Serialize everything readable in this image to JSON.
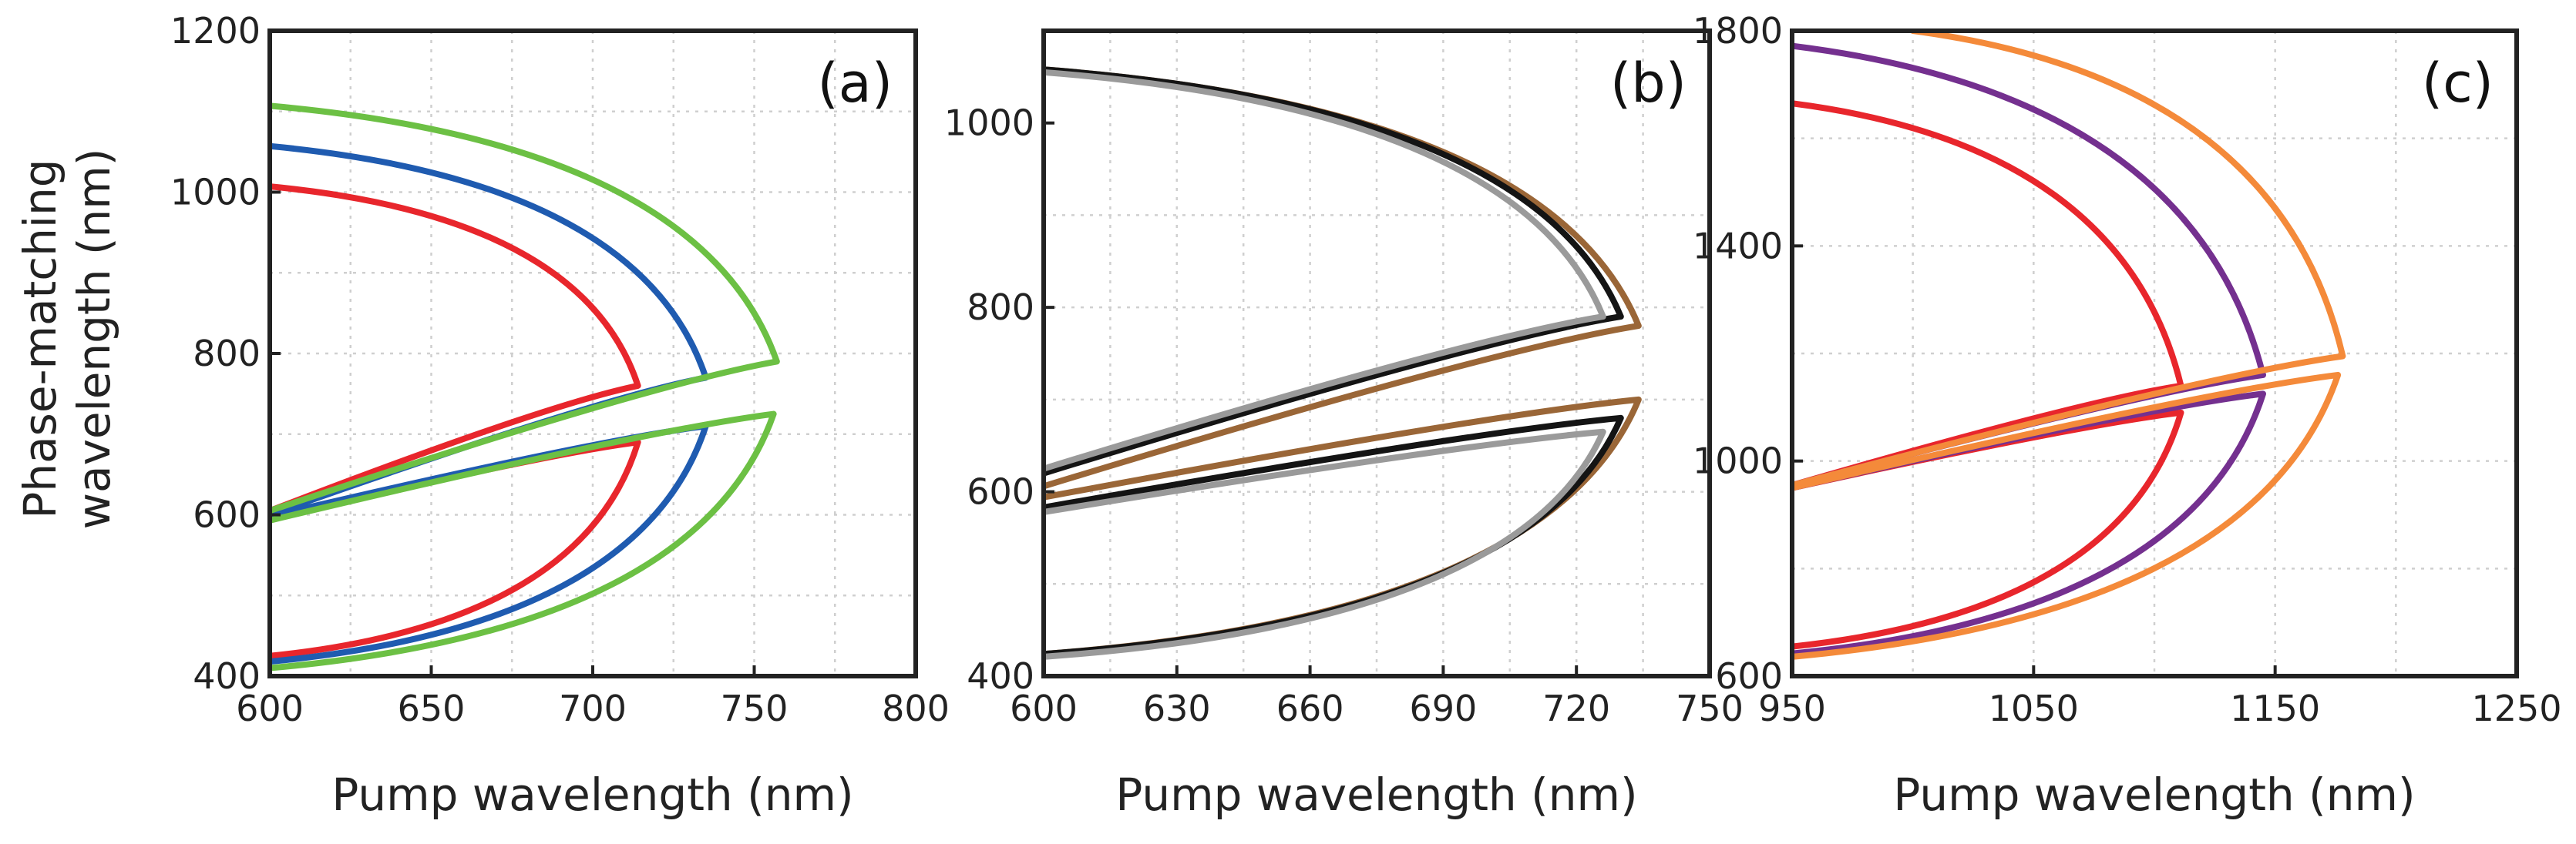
{
  "figure": {
    "shared_ylabel_line1": "Phase-matching",
    "shared_ylabel_line2": "wavelength (nm)"
  },
  "colors": {
    "red": "#e8262c",
    "blue": "#1f5bb0",
    "green": "#6cc044",
    "black": "#141414",
    "gray": "#9a9a9a",
    "brown": "#9a6637",
    "purple": "#74308f",
    "orange": "#f48a3a"
  },
  "chart_data": [
    {
      "type": "line",
      "panel_label": "(a)",
      "title": "",
      "xlabel": "Pump wavelength (nm)",
      "ylabel": "Phase-matching wavelength (nm)",
      "xlim": [
        600,
        800
      ],
      "ylim": [
        400,
        1200
      ],
      "xticks": [
        600,
        650,
        700,
        750,
        800
      ],
      "yticks": [
        400,
        600,
        800,
        1000,
        1200
      ],
      "grid": true,
      "series": [
        {
          "name": "red-upper",
          "color": "red",
          "turning_x": 714,
          "turning_y": 760,
          "start": [
            600,
            605
          ],
          "end": [
            600,
            1007
          ]
        },
        {
          "name": "red-lower",
          "color": "red",
          "turning_x": 714,
          "turning_y": 690,
          "start": [
            600,
            595
          ],
          "end": [
            600,
            425
          ]
        },
        {
          "name": "blue-upper",
          "color": "blue",
          "turning_x": 735,
          "turning_y": 770,
          "start": [
            600,
            600
          ],
          "end": [
            600,
            1057
          ]
        },
        {
          "name": "blue-lower",
          "color": "blue",
          "turning_x": 735,
          "turning_y": 710,
          "start": [
            600,
            598
          ],
          "end": [
            600,
            418
          ]
        },
        {
          "name": "green-upper",
          "color": "green",
          "turning_x": 757,
          "turning_y": 790,
          "start": [
            600,
            605
          ],
          "end": [
            600,
            1107
          ]
        },
        {
          "name": "green-lower",
          "color": "green",
          "turning_x": 756,
          "turning_y": 725,
          "start": [
            600,
            593
          ],
          "end": [
            600,
            410
          ]
        }
      ]
    },
    {
      "type": "line",
      "panel_label": "(b)",
      "title": "",
      "xlabel": "Pump wavelength (nm)",
      "ylabel": "",
      "xlim": [
        600,
        750
      ],
      "ylim": [
        400,
        1100
      ],
      "xticks": [
        600,
        630,
        660,
        690,
        720,
        750
      ],
      "yticks": [
        400,
        600,
        800,
        1000
      ],
      "grid": true,
      "series": [
        {
          "name": "brown-upper",
          "color": "brown",
          "turning_x": 734,
          "turning_y": 780,
          "start": [
            600,
            606
          ],
          "end": [
            600,
            1058
          ]
        },
        {
          "name": "brown-lower",
          "color": "brown",
          "turning_x": 734,
          "turning_y": 700,
          "start": [
            600,
            594
          ],
          "end": [
            600,
            424
          ]
        },
        {
          "name": "black-upper",
          "color": "black",
          "turning_x": 730,
          "turning_y": 790,
          "start": [
            600,
            620
          ],
          "end": [
            600,
            1058
          ]
        },
        {
          "name": "black-lower",
          "color": "black",
          "turning_x": 730,
          "turning_y": 680,
          "start": [
            600,
            583
          ],
          "end": [
            600,
            424
          ]
        },
        {
          "name": "gray-upper",
          "color": "gray",
          "turning_x": 726,
          "turning_y": 790,
          "start": [
            600,
            625
          ],
          "end": [
            600,
            1055
          ]
        },
        {
          "name": "gray-lower",
          "color": "gray",
          "turning_x": 726,
          "turning_y": 665,
          "start": [
            600,
            578
          ],
          "end": [
            600,
            421
          ]
        }
      ]
    },
    {
      "type": "line",
      "panel_label": "(c)",
      "title": "",
      "xlabel": "Pump wavelength (nm)",
      "ylabel": "",
      "xlim": [
        950,
        1250
      ],
      "ylim": [
        600,
        1800
      ],
      "xticks": [
        950,
        1050,
        1150,
        1250
      ],
      "yticks": [
        600,
        1000,
        1400,
        1800
      ],
      "grid": true,
      "series": [
        {
          "name": "red-upper",
          "color": "red",
          "turning_x": 1111,
          "turning_y": 1140,
          "start": [
            950,
            955
          ],
          "end": [
            950,
            1665
          ]
        },
        {
          "name": "red-lower",
          "color": "red",
          "turning_x": 1111,
          "turning_y": 1090,
          "start": [
            950,
            950
          ],
          "end": [
            950,
            655
          ]
        },
        {
          "name": "purple-upper",
          "color": "purple",
          "turning_x": 1145,
          "turning_y": 1160,
          "start": [
            950,
            955
          ],
          "end": [
            950,
            1772
          ]
        },
        {
          "name": "purple-lower",
          "color": "purple",
          "turning_x": 1145,
          "turning_y": 1125,
          "start": [
            950,
            950
          ],
          "end": [
            950,
            642
          ]
        },
        {
          "name": "orange-upper",
          "color": "orange",
          "turning_x": 1178,
          "turning_y": 1195,
          "start": [
            950,
            955
          ],
          "end": [
            1000,
            1800
          ]
        },
        {
          "name": "orange-lower",
          "color": "orange",
          "turning_x": 1176,
          "turning_y": 1160,
          "start": [
            950,
            950
          ],
          "end": [
            950,
            636
          ]
        }
      ]
    }
  ]
}
